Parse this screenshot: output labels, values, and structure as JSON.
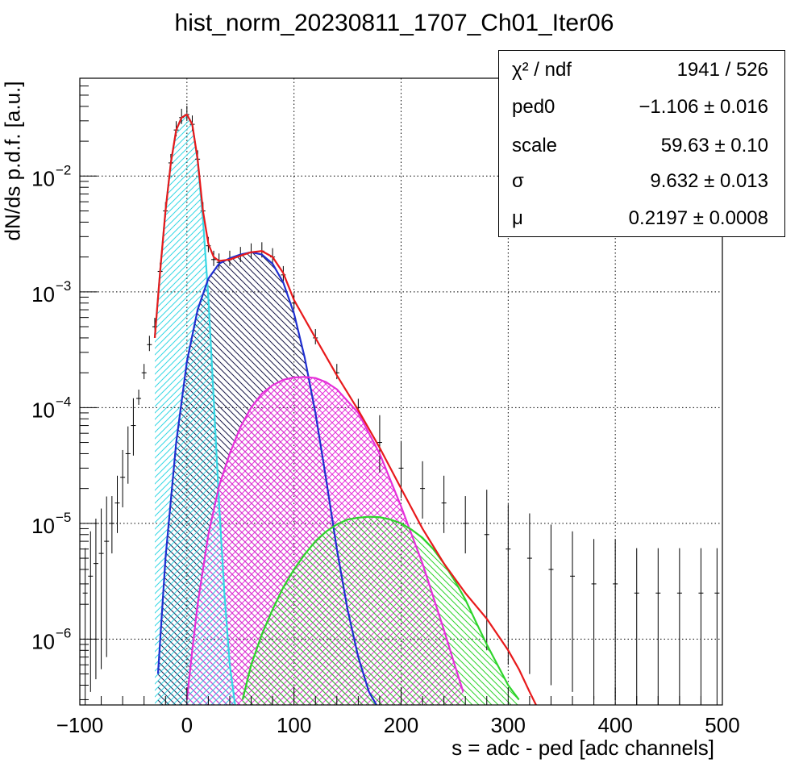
{
  "chart_data": {
    "type": "line",
    "title": "hist_norm_20230811_1707_Ch01_Iter06",
    "xlabel": "s = adc - ped [adc channels]",
    "ylabel": "dN/ds p.d.f. [a.u.]",
    "xlim": [
      -100,
      500
    ],
    "ylim": [
      2.7e-07,
      0.07
    ],
    "yscale": "log",
    "grid": true,
    "x_ticks": [
      -100,
      0,
      100,
      200,
      300,
      400,
      500
    ],
    "x_tick_labels": [
      "−100",
      "0",
      "100",
      "200",
      "300",
      "400",
      "500"
    ],
    "y_ticks": [
      1e-06,
      1e-05,
      0.0001,
      0.001,
      0.01
    ],
    "y_tick_labels": [
      {
        "base": "10",
        "exp": "−6"
      },
      {
        "base": "10",
        "exp": "−5"
      },
      {
        "base": "10",
        "exp": "−4"
      },
      {
        "base": "10",
        "exp": "−3"
      },
      {
        "base": "10",
        "exp": "−2"
      }
    ],
    "series": [
      {
        "role": "data",
        "color": "#000000",
        "x": [
          -95,
          -90,
          -85,
          -80,
          -75,
          -70,
          -65,
          -60,
          -55,
          -50,
          -45,
          -40,
          -35,
          -30,
          -25,
          -20,
          -15,
          -10,
          -5,
          0,
          5,
          10,
          15,
          20,
          25,
          30,
          40,
          50,
          60,
          70,
          80,
          90,
          100,
          120,
          140,
          160,
          180,
          200,
          220,
          240,
          260,
          280,
          300,
          320,
          340,
          360,
          380,
          400,
          420,
          440,
          460,
          480,
          495
        ],
        "y": [
          2.5e-06,
          3.5e-06,
          4.5e-06,
          5.5e-06,
          7e-06,
          1e-05,
          1.5e-05,
          2.5e-05,
          4e-05,
          7e-05,
          0.00012,
          0.0002,
          0.00035,
          0.0005,
          0.0015,
          0.005,
          0.013,
          0.025,
          0.032,
          0.034,
          0.028,
          0.014,
          0.005,
          0.0025,
          0.0019,
          0.0018,
          0.0019,
          0.00205,
          0.0022,
          0.00225,
          0.002,
          0.0014,
          0.0008,
          0.0004,
          0.0002,
          0.0001,
          5e-05,
          3e-05,
          2e-05,
          1.5e-05,
          1e-05,
          8e-06,
          6e-06,
          5e-06,
          4e-06,
          3.5e-06,
          3e-06,
          3e-06,
          2.5e-06,
          2.5e-06,
          2.5e-06,
          2.5e-06,
          2.5e-06
        ]
      },
      {
        "role": "total-fit",
        "color": "#e8191b",
        "x": [
          -30,
          -25,
          -20,
          -15,
          -10,
          -5,
          0,
          5,
          10,
          15,
          20,
          25,
          30,
          40,
          50,
          60,
          70,
          80,
          90,
          100,
          120,
          140,
          160,
          180,
          200,
          220,
          240,
          260,
          280,
          300,
          310,
          320,
          326
        ],
        "y": [
          0.0004,
          0.0015,
          0.005,
          0.013,
          0.025,
          0.032,
          0.034,
          0.028,
          0.014,
          0.005,
          0.0026,
          0.002,
          0.00185,
          0.0019,
          0.00205,
          0.0022,
          0.00225,
          0.002,
          0.00145,
          0.00085,
          0.0004,
          0.00019,
          9.5e-05,
          4.5e-05,
          2e-05,
          9e-06,
          4.5e-06,
          2.5e-06,
          1.5e-06,
          8e-07,
          5.5e-07,
          3.5e-07,
          2.7e-07
        ]
      },
      {
        "role": "pedestal",
        "color": "#36d7e4",
        "hatch": "diag-up",
        "x": [
          -30,
          -25,
          -20,
          -15,
          -10,
          -5,
          0,
          5,
          10,
          15,
          20,
          25,
          30,
          35,
          40,
          45
        ],
        "y": [
          0.0004,
          0.0015,
          0.005,
          0.013,
          0.025,
          0.032,
          0.034,
          0.028,
          0.0135,
          0.0042,
          0.0009,
          0.00012,
          1.5e-05,
          2.5e-06,
          6e-07,
          2.7e-07
        ]
      },
      {
        "role": "1pe",
        "color": "#1f2fd0",
        "hatch": "diag-down",
        "x": [
          -27,
          -20,
          -10,
          0,
          10,
          20,
          30,
          40,
          50,
          60,
          70,
          80,
          90,
          100,
          110,
          120,
          130,
          140,
          150,
          160,
          170,
          177
        ],
        "y": [
          5e-07,
          5e-06,
          5e-05,
          0.00025,
          0.0007,
          0.0013,
          0.00175,
          0.00195,
          0.0021,
          0.0022,
          0.0021,
          0.00175,
          0.0012,
          0.00065,
          0.00027,
          9e-05,
          2.4e-05,
          6e-06,
          1.8e-06,
          7e-07,
          3.5e-07,
          2.7e-07
        ]
      },
      {
        "role": "2pe",
        "color": "#e52fd9",
        "hatch": "cross",
        "x": [
          0,
          5,
          10,
          20,
          30,
          40,
          50,
          60,
          70,
          80,
          90,
          100,
          110,
          120,
          130,
          140,
          160,
          180,
          200,
          220,
          240,
          250,
          258
        ],
        "y": [
          3e-07,
          8e-07,
          2e-06,
          8e-06,
          2.1e-05,
          4e-05,
          6.8e-05,
          0.0001,
          0.000132,
          0.000156,
          0.000174,
          0.000182,
          0.000184,
          0.00018,
          0.000166,
          0.000144,
          9e-05,
          4e-05,
          1.4e-05,
          4.5e-06,
          1.2e-06,
          6e-07,
          3.5e-07
        ]
      },
      {
        "role": "3pe",
        "color": "#2ed42b",
        "hatch": "diag-down",
        "x": [
          52,
          60,
          70,
          80,
          90,
          100,
          110,
          120,
          130,
          140,
          150,
          160,
          170,
          180,
          190,
          200,
          210,
          220,
          230,
          240,
          250,
          260,
          270,
          280,
          290,
          300,
          310
        ],
        "y": [
          3e-07,
          6e-07,
          1.1e-06,
          1.8e-06,
          2.8e-06,
          4e-06,
          5.4e-06,
          7e-06,
          8.5e-06,
          9.8e-06,
          1.08e-05,
          1.12e-05,
          1.14e-05,
          1.13e-05,
          1.08e-05,
          1e-05,
          8.8e-06,
          7.5e-06,
          6e-06,
          4.5e-06,
          3.2e-06,
          2.2e-06,
          1.4e-06,
          9e-07,
          6e-07,
          4e-07,
          3e-07
        ]
      }
    ]
  },
  "stats_box": {
    "rows": [
      {
        "key": "χ² / ndf",
        "value": "1941 / 526"
      },
      {
        "key": "ped0",
        "value": "−1.106 ± 0.016"
      },
      {
        "key": "scale",
        "value": "59.63 ± 0.10"
      },
      {
        "key": "σ",
        "value": "9.632 ± 0.013"
      },
      {
        "key": "μ",
        "value": "0.2197 ± 0.0008"
      }
    ]
  }
}
